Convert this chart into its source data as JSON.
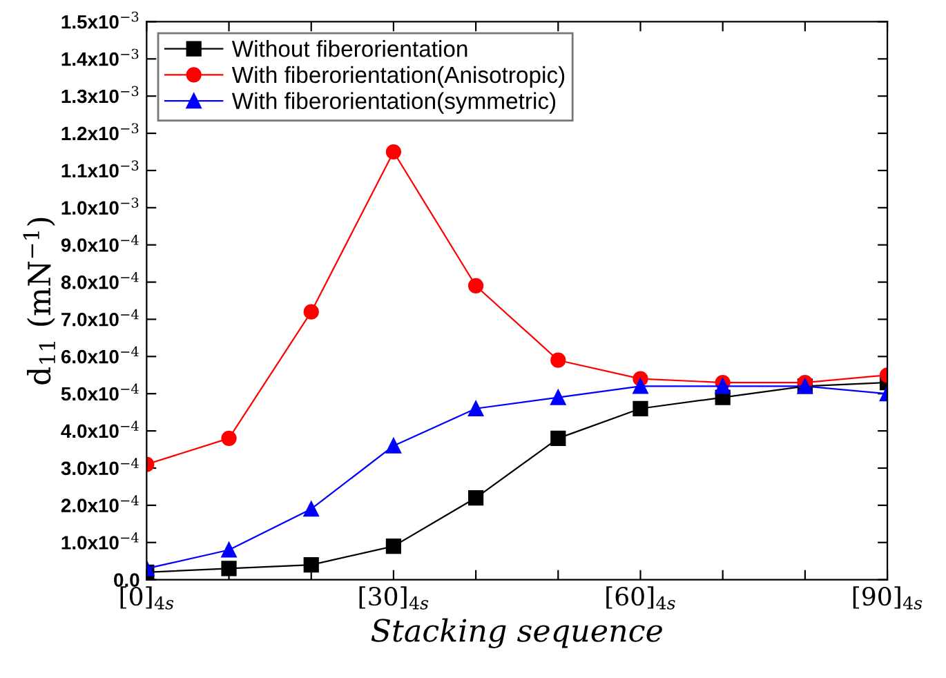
{
  "chart_data": {
    "type": "line",
    "xlabel": "Stacking sequence",
    "ylabel": "d$_{11}$ (mN$^{−1}$)",
    "categories": [
      "[0]$_{4s}$",
      null,
      null,
      "[30]$_{4s}$",
      null,
      null,
      "[60]$_{4s}$",
      null,
      null,
      "[90]$_{4s}$"
    ],
    "series": [
      {
        "name": "Without fiberorientation",
        "color": "#000000",
        "marker": "square",
        "values": [
          2e-05,
          3e-05,
          4e-05,
          9e-05,
          0.00022,
          0.00038,
          0.00046,
          0.00049,
          0.00052,
          0.00053
        ]
      },
      {
        "name": "With fiberorientation(Anisotropic)",
        "color": "#ff0000",
        "marker": "circle",
        "values": [
          0.00031,
          0.00038,
          0.00072,
          0.00115,
          0.00079,
          0.00059,
          0.00054,
          0.00053,
          0.00053,
          0.00055
        ]
      },
      {
        "name": "With fiberorientation(symmetric)",
        "color": "#0000ff",
        "marker": "triangle",
        "values": [
          3e-05,
          8e-05,
          0.00019,
          0.00036,
          0.00046,
          0.00049,
          0.00052,
          0.00052,
          0.00052,
          0.0005
        ]
      }
    ],
    "ylim": [
      0,
      0.0015
    ],
    "yticks": [
      {
        "value": 0,
        "label": "0.0"
      },
      {
        "value": 0.0001,
        "label": "1.0x10$^{−4}$"
      },
      {
        "value": 0.0002,
        "label": "2.0x10$^{−4}$"
      },
      {
        "value": 0.0003,
        "label": "3.0x10$^{−4}$"
      },
      {
        "value": 0.0004,
        "label": "4.0x10$^{−4}$"
      },
      {
        "value": 0.0005,
        "label": "5.0x10$^{−4}$"
      },
      {
        "value": 0.0006,
        "label": "6.0x10$^{−4}$"
      },
      {
        "value": 0.0007,
        "label": "7.0x10$^{−4}$"
      },
      {
        "value": 0.0008,
        "label": "8.0x10$^{−4}$"
      },
      {
        "value": 0.0009,
        "label": "9.0x10$^{−4}$"
      },
      {
        "value": 0.001,
        "label": "1.0x10$^{−3}$"
      },
      {
        "value": 0.0011,
        "label": "1.1x10$^{−3}$"
      },
      {
        "value": 0.0012,
        "label": "1.2x10$^{−3}$"
      },
      {
        "value": 0.0013,
        "label": "1.3x10$^{−3}$"
      },
      {
        "value": 0.0014,
        "label": "1.4x10$^{−3}$"
      },
      {
        "value": 0.0015,
        "label": "1.5x10$^{−3}$"
      }
    ],
    "grid": false,
    "legend": "top left",
    "line_style": "solid"
  }
}
